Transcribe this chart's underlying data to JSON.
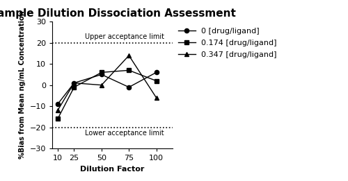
{
  "title": "Sample Dilution Dissociation Assessment",
  "xlabel": "Dilution Factor",
  "ylabel": "%Bias from Mean ng/mL Concentration",
  "x": [
    10,
    25,
    50,
    75,
    100
  ],
  "series": [
    {
      "label": "0 [drug/ligand]",
      "y": [
        -9,
        1,
        5,
        -1,
        6
      ],
      "marker": "o",
      "color": "#000000"
    },
    {
      "label": "0.174 [drug/ligand]",
      "y": [
        -16,
        -1,
        6,
        7,
        2
      ],
      "marker": "s",
      "color": "#000000"
    },
    {
      "label": "0.347 [drug/ligand]",
      "y": [
        -12,
        1,
        0,
        14,
        -6
      ],
      "marker": "^",
      "color": "#000000"
    }
  ],
  "upper_limit": 20,
  "lower_limit": -20,
  "upper_label": "Upper acceptance limit",
  "lower_label": "Lower acceptance limit",
  "ylim": [
    -30,
    30
  ],
  "yticks": [
    -30,
    -20,
    -10,
    0,
    10,
    20,
    30
  ],
  "xticks": [
    10,
    25,
    50,
    75,
    100
  ],
  "xlim": [
    5,
    115
  ],
  "background_color": "#ffffff",
  "title_fontsize": 11,
  "axis_label_fontsize": 8,
  "tick_fontsize": 8,
  "legend_fontsize": 8,
  "accept_label_fontsize": 7
}
